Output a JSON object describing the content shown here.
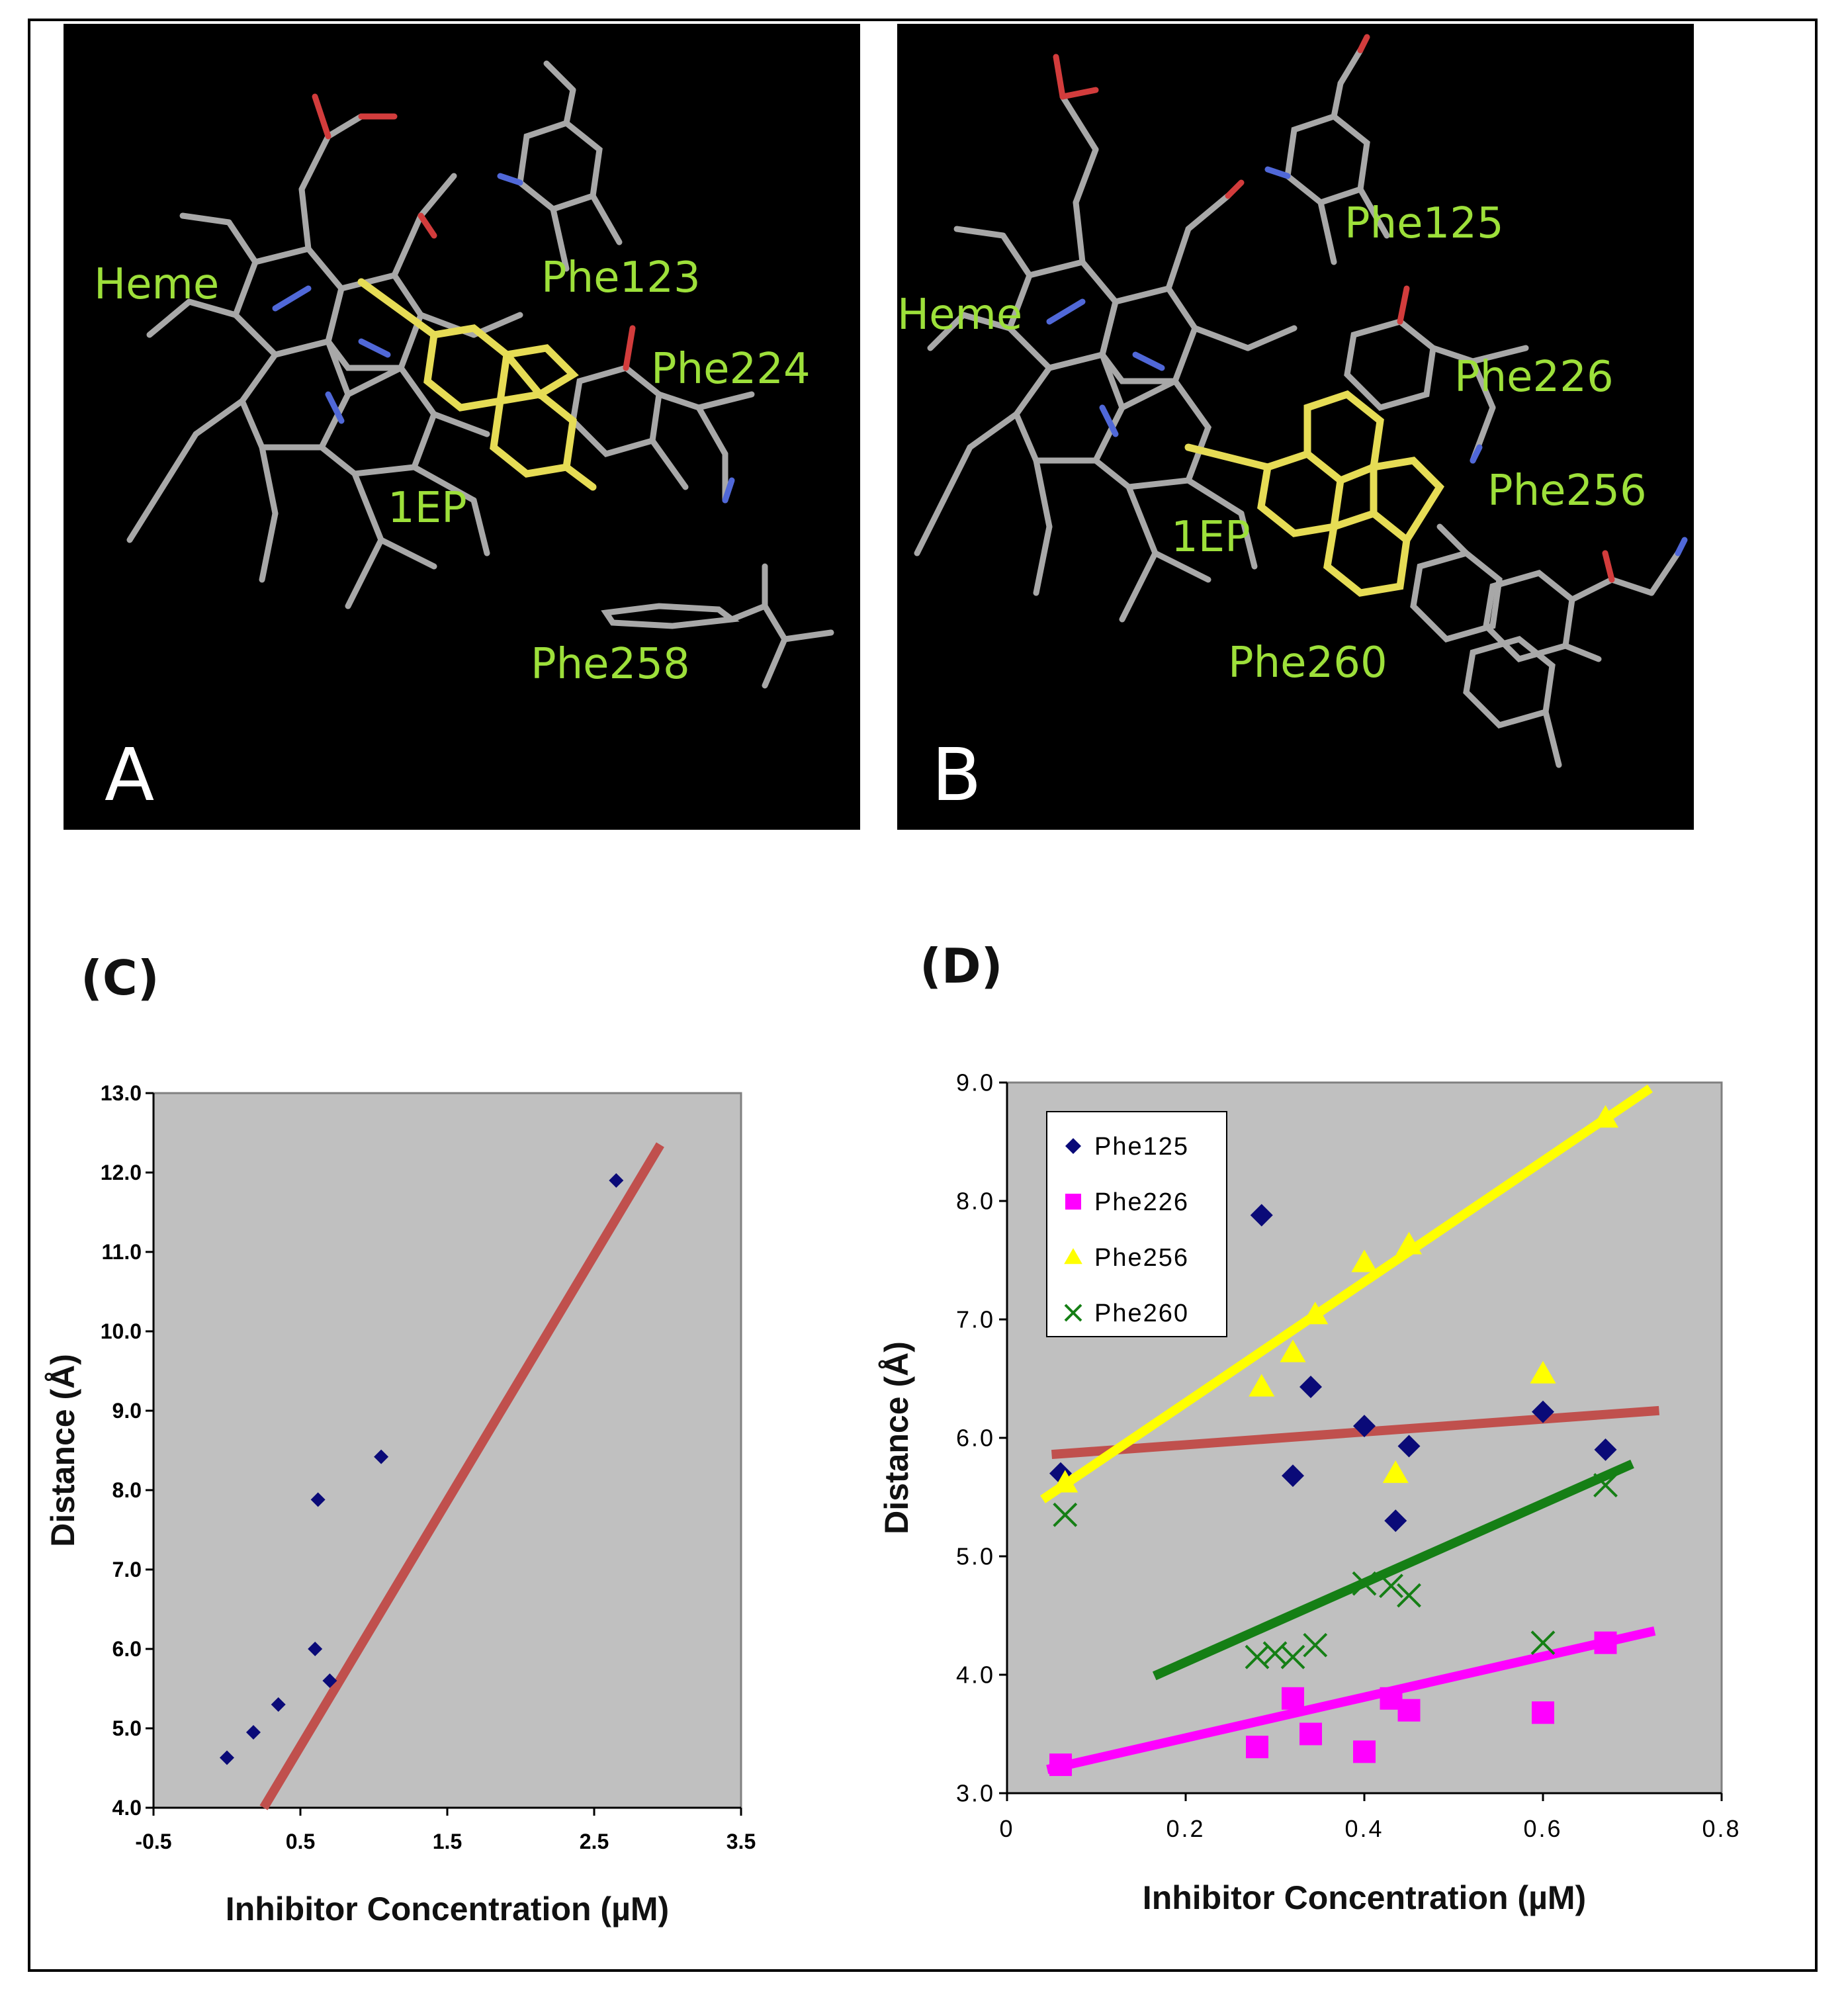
{
  "panels": {
    "A": {
      "letter": "A",
      "labels": {
        "heme": "Heme",
        "phe1": "Phe123",
        "phe2": "Phe224",
        "ligand": "1EP",
        "phe3": "Phe258"
      }
    },
    "B": {
      "letter": "B",
      "labels": {
        "heme": "Heme",
        "phe1": "Phe125",
        "phe2": "Phe226",
        "phe3": "Phe256",
        "ligand": "1EP",
        "phe4": "Phe260"
      }
    }
  },
  "colors": {
    "panel_bg": "#000000",
    "label": "#9de03a",
    "stick": "#a8a8a8",
    "ligand": "#e6dc55",
    "oxygen": "#d23c3c",
    "nitrogen": "#5068d8",
    "plot_bg": "#c0c0c0",
    "diamond": "#0a0a78",
    "trend_red": "#c0504d",
    "magenta": "#ff00ff",
    "yellow": "#ffff00",
    "green": "#157f15"
  },
  "chart_data": [
    {
      "id": "C",
      "type": "scatter",
      "title": "(C)",
      "xlabel": "Inhibitor Concentration (µM)",
      "ylabel": "Distance (Å)",
      "xlim": [
        -0.5,
        3.5
      ],
      "ylim": [
        4.0,
        13.0
      ],
      "xticks": [
        "-0.5",
        "0.5",
        "1.5",
        "2.5",
        "3.5"
      ],
      "yticks": [
        "4.0",
        "5.0",
        "6.0",
        "7.0",
        "8.0",
        "9.0",
        "10.0",
        "11.0",
        "12.0",
        "13.0"
      ],
      "series": [
        {
          "name": "points",
          "marker": "diamond",
          "points": [
            [
              0.0,
              4.63
            ],
            [
              0.18,
              4.95
            ],
            [
              0.35,
              5.3
            ],
            [
              0.6,
              6.0
            ],
            [
              0.62,
              7.88
            ],
            [
              0.7,
              5.6
            ],
            [
              1.05,
              8.42
            ],
            [
              2.65,
              11.9
            ]
          ]
        }
      ],
      "trendline": {
        "from": [
          0.25,
          4.0
        ],
        "to": [
          2.95,
          12.35
        ]
      }
    },
    {
      "id": "D",
      "type": "scatter",
      "title": "(D)",
      "xlabel": "Inhibitor Concentration (µM)",
      "ylabel": "Distance (Å)",
      "xlim": [
        0,
        0.8
      ],
      "ylim": [
        3.0,
        9.0
      ],
      "xticks": [
        "0",
        "0.2",
        "0.4",
        "0.6",
        "0.8"
      ],
      "yticks": [
        "3.0",
        "4.0",
        "5.0",
        "6.0",
        "7.0",
        "8.0",
        "9.0"
      ],
      "legend_position": "top-left",
      "series": [
        {
          "name": "Phe125",
          "marker": "diamond",
          "points": [
            [
              0.06,
              5.7
            ],
            [
              0.285,
              7.88
            ],
            [
              0.32,
              5.68
            ],
            [
              0.34,
              6.43
            ],
            [
              0.4,
              6.1
            ],
            [
              0.435,
              5.3
            ],
            [
              0.45,
              5.93
            ],
            [
              0.6,
              6.22
            ],
            [
              0.67,
              5.9
            ]
          ],
          "trendline": {
            "from": [
              0.05,
              5.86
            ],
            "to": [
              0.73,
              6.23
            ]
          }
        },
        {
          "name": "Phe226",
          "marker": "square",
          "points": [
            [
              0.06,
              3.24
            ],
            [
              0.28,
              3.39
            ],
            [
              0.32,
              3.8
            ],
            [
              0.34,
              3.5
            ],
            [
              0.4,
              3.35
            ],
            [
              0.43,
              3.8
            ],
            [
              0.45,
              3.7
            ],
            [
              0.6,
              3.68
            ],
            [
              0.67,
              4.27
            ]
          ],
          "trendline": {
            "from": [
              0.045,
              3.2
            ],
            "to": [
              0.725,
              4.37
            ]
          }
        },
        {
          "name": "Phe256",
          "marker": "triangle",
          "points": [
            [
              0.065,
              5.62
            ],
            [
              0.285,
              6.43
            ],
            [
              0.32,
              6.72
            ],
            [
              0.345,
              7.04
            ],
            [
              0.4,
              7.48
            ],
            [
              0.435,
              5.7
            ],
            [
              0.45,
              7.63
            ],
            [
              0.6,
              6.54
            ],
            [
              0.67,
              8.7
            ]
          ],
          "trendline": {
            "from": [
              0.04,
              5.48
            ],
            "to": [
              0.72,
              8.95
            ]
          }
        },
        {
          "name": "Phe260",
          "marker": "x",
          "points": [
            [
              0.065,
              5.35
            ],
            [
              0.28,
              4.15
            ],
            [
              0.3,
              4.18
            ],
            [
              0.32,
              4.15
            ],
            [
              0.345,
              4.25
            ],
            [
              0.4,
              4.77
            ],
            [
              0.43,
              4.75
            ],
            [
              0.45,
              4.67
            ],
            [
              0.6,
              4.27
            ],
            [
              0.67,
              5.6
            ]
          ],
          "trendline": {
            "from": [
              0.165,
              3.99
            ],
            "to": [
              0.7,
              5.78
            ]
          }
        }
      ]
    }
  ]
}
